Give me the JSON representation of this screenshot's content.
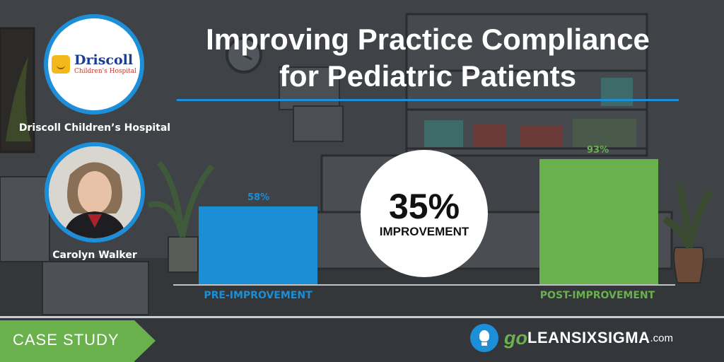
{
  "header": {
    "title_line1": "Improving Practice Compliance",
    "title_line2": "for Pediatric Patients"
  },
  "sidebar": {
    "logo_name": "Driscoll",
    "logo_sub": "Children's Hospital",
    "org_caption": "Driscoll Children’s Hospital",
    "person_caption": "Carolyn Walker"
  },
  "badge": {
    "value": "35%",
    "label": "IMPROVEMENT"
  },
  "chart_data": {
    "type": "bar",
    "categories": [
      "PRE-IMPROVEMENT",
      "POST-IMPROVEMENT"
    ],
    "values": [
      58,
      93
    ],
    "value_labels": [
      "58%",
      "93%"
    ],
    "colors": [
      "#1a8fd6",
      "#6ab04c"
    ],
    "ylim": [
      0,
      100
    ]
  },
  "footer": {
    "case_label": "CASE STUDY",
    "brand_go": "go",
    "brand_main": "LEANSIXSIGMA",
    "brand_tld": ".com"
  },
  "icons": {
    "sun_logo": "sun-logo-icon",
    "brand_bulb": "lightbulb-icon"
  }
}
